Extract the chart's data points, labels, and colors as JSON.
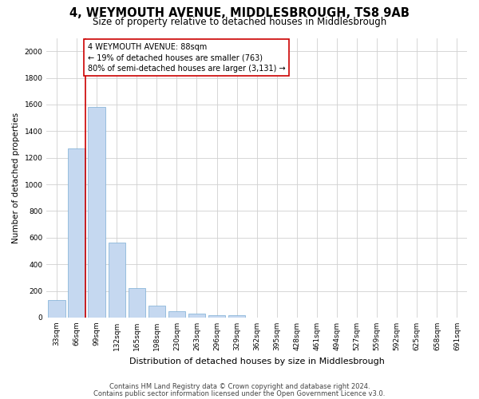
{
  "title": "4, WEYMOUTH AVENUE, MIDDLESBROUGH, TS8 9AB",
  "subtitle": "Size of property relative to detached houses in Middlesbrough",
  "xlabel": "Distribution of detached houses by size in Middlesbrough",
  "ylabel": "Number of detached properties",
  "categories": [
    "33sqm",
    "66sqm",
    "99sqm",
    "132sqm",
    "165sqm",
    "198sqm",
    "230sqm",
    "263sqm",
    "296sqm",
    "329sqm",
    "362sqm",
    "395sqm",
    "428sqm",
    "461sqm",
    "494sqm",
    "527sqm",
    "559sqm",
    "592sqm",
    "625sqm",
    "658sqm",
    "691sqm"
  ],
  "values": [
    130,
    1270,
    1580,
    560,
    220,
    90,
    45,
    30,
    20,
    20,
    0,
    0,
    0,
    0,
    0,
    0,
    0,
    0,
    0,
    0,
    0
  ],
  "bar_color": "#c5d8f0",
  "bar_edge_color": "#7aadd4",
  "highlight_color": "#cc0000",
  "annotation_line1": "4 WEYMOUTH AVENUE: 88sqm",
  "annotation_line2": "← 19% of detached houses are smaller (763)",
  "annotation_line3": "80% of semi-detached houses are larger (3,131) →",
  "annotation_box_color": "#ffffff",
  "annotation_box_edge_color": "#cc0000",
  "ylim": [
    0,
    2100
  ],
  "yticks": [
    0,
    200,
    400,
    600,
    800,
    1000,
    1200,
    1400,
    1600,
    1800,
    2000
  ],
  "grid_color": "#d0d0d0",
  "background_color": "#ffffff",
  "footer_line1": "Contains HM Land Registry data © Crown copyright and database right 2024.",
  "footer_line2": "Contains public sector information licensed under the Open Government Licence v3.0.",
  "title_fontsize": 10.5,
  "subtitle_fontsize": 8.5,
  "annotation_fontsize": 7.0,
  "tick_fontsize": 6.5,
  "ylabel_fontsize": 7.5,
  "xlabel_fontsize": 8.0,
  "footer_fontsize": 6.0
}
